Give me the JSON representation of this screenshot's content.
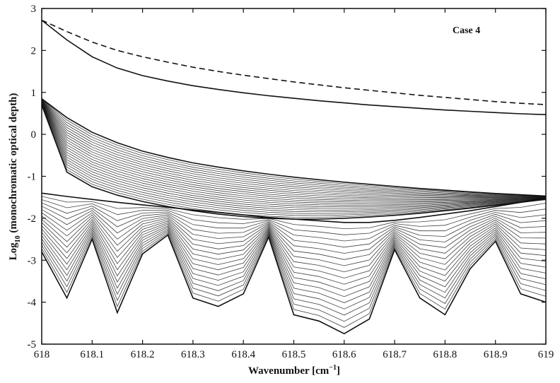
{
  "chart_data": {
    "type": "line",
    "title": "",
    "annotation": "Case 4",
    "xlabel": "Wavenumber [cm",
    "xlabel_sup": "−1",
    "xlabel_end": "]",
    "ylabel": "Log",
    "ylabel_sub": "10",
    "ylabel_end": " (monochromatic optical depth)",
    "xlim": [
      618,
      619
    ],
    "ylim": [
      -5,
      3
    ],
    "x_ticks": [
      618,
      618.1,
      618.2,
      618.3,
      618.4,
      618.5,
      618.6,
      618.7,
      618.8,
      618.9,
      619
    ],
    "x_tick_labels": [
      "618",
      "618.1",
      "618.2",
      "618.3",
      "618.4",
      "618.5",
      "618.6",
      "618.7",
      "618.8",
      "618.9",
      "619"
    ],
    "y_ticks": [
      -5,
      -4,
      -3,
      -2,
      -1,
      0,
      1,
      2,
      3
    ],
    "y_tick_labels": [
      "-5",
      "-4",
      "-3",
      "-2",
      "-1",
      "0",
      "1",
      "2",
      "3"
    ],
    "grid": false,
    "legend": "none",
    "line_color": "#111111",
    "x": [
      618.0,
      618.05,
      618.1,
      618.15,
      618.2,
      618.25,
      618.3,
      618.35,
      618.4,
      618.45,
      618.5,
      618.55,
      618.6,
      618.65,
      618.7,
      618.75,
      618.8,
      618.85,
      618.9,
      618.95,
      619.0
    ],
    "series": [
      {
        "style": "dashed",
        "values": [
          2.72,
          2.45,
          2.2,
          2.0,
          1.85,
          1.72,
          1.6,
          1.5,
          1.41,
          1.33,
          1.25,
          1.18,
          1.11,
          1.05,
          0.99,
          0.93,
          0.88,
          0.83,
          0.78,
          0.74,
          0.71
        ]
      },
      {
        "style": "solid",
        "values": [
          2.72,
          2.25,
          1.85,
          1.58,
          1.4,
          1.27,
          1.16,
          1.07,
          0.99,
          0.92,
          0.86,
          0.8,
          0.75,
          0.7,
          0.66,
          0.62,
          0.58,
          0.55,
          0.52,
          0.49,
          0.47
        ]
      },
      {
        "style": "solid",
        "group": "middle-envelope-top",
        "values": [
          0.85,
          0.4,
          0.05,
          -0.2,
          -0.4,
          -0.55,
          -0.68,
          -0.78,
          -0.87,
          -0.95,
          -1.02,
          -1.08,
          -1.14,
          -1.19,
          -1.24,
          -1.29,
          -1.33,
          -1.37,
          -1.41,
          -1.44,
          -1.47
        ]
      },
      {
        "style": "solid",
        "group": "middle-envelope-bottom",
        "values": [
          0.7,
          -0.9,
          -1.25,
          -1.45,
          -1.6,
          -1.72,
          -1.82,
          -1.9,
          -1.96,
          -2.0,
          -2.02,
          -2.02,
          -2.0,
          -1.97,
          -1.93,
          -1.88,
          -1.82,
          -1.76,
          -1.69,
          -1.62,
          -1.55
        ]
      },
      {
        "style": "solid",
        "group": "lower-bundle-top",
        "values": [
          -1.4,
          -1.48,
          -1.55,
          -1.62,
          -1.68,
          -1.74,
          -1.8,
          -1.86,
          -1.92,
          -1.98,
          -2.02,
          -2.06,
          -2.1,
          -2.1,
          -2.05,
          -1.98,
          -1.9,
          -1.82,
          -1.72,
          -1.62,
          -1.5
        ]
      },
      {
        "style": "solid",
        "group": "lower-bundle-bottom",
        "values": [
          -2.8,
          -3.9,
          -2.5,
          -4.25,
          -2.85,
          -2.4,
          -3.9,
          -4.1,
          -3.8,
          -2.45,
          -4.3,
          -4.45,
          -4.75,
          -4.4,
          -2.75,
          -3.9,
          -4.3,
          -3.2,
          -2.55,
          -3.8,
          -4.0
        ]
      }
    ]
  }
}
